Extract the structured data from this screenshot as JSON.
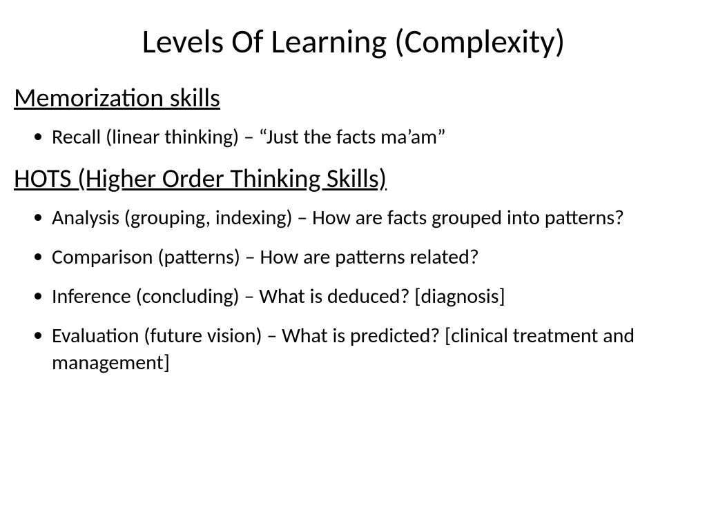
{
  "slide": {
    "title": "Levels Of Learning (Complexity)",
    "title_fontsize": 48,
    "heading_fontsize": 38,
    "bullet_fontsize": 30,
    "text_color": "#000000",
    "background_color": "#ffffff",
    "sections": [
      {
        "heading": "Memorization skills",
        "bullets": [
          "Recall (linear thinking) – “Just the facts ma’am”"
        ]
      },
      {
        "heading": "HOTS (Higher Order Thinking Skills)",
        "bullets": [
          "Analysis (grouping, indexing) – How are facts grouped into patterns?",
          "Comparison (patterns) – How are patterns related?",
          "Inference (concluding) – What is deduced? [diagnosis]",
          "Evaluation (future vision) – What is predicted? [clinical treatment and management]"
        ]
      }
    ]
  }
}
